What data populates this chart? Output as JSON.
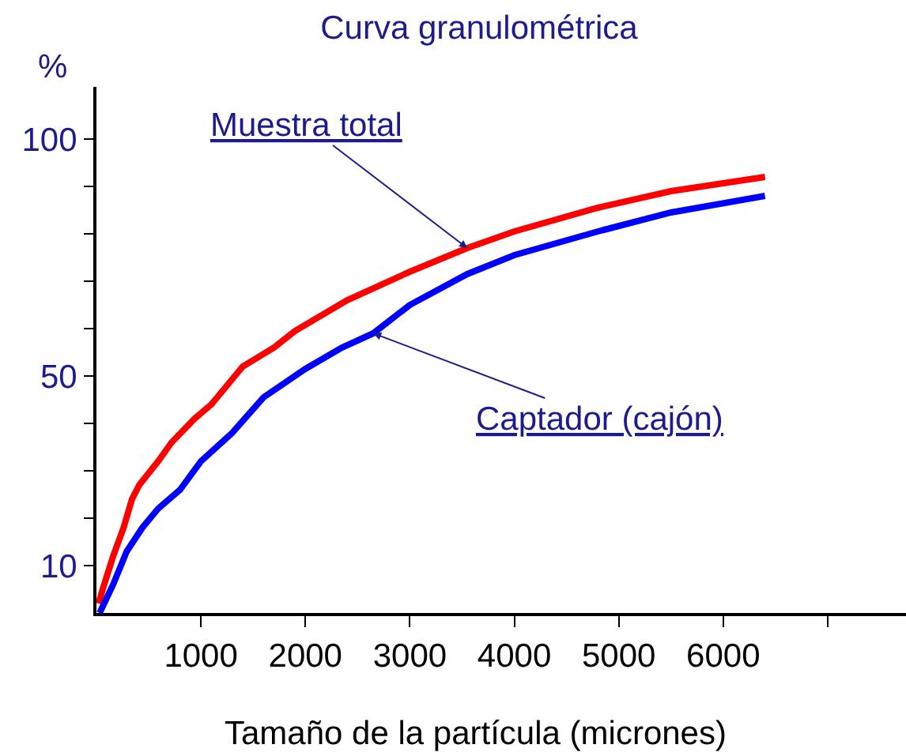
{
  "chart_data": {
    "type": "line",
    "title": "Curva granulométrica",
    "xlabel": "Tamaño de la partícula (micrones)",
    "ylabel": "%",
    "xlim": [
      0,
      7750
    ],
    "xticks": [
      1000,
      2000,
      3000,
      4000,
      5000,
      6000,
      {
        "value": 7000,
        "label": null
      }
    ],
    "ylim": [
      0,
      111
    ],
    "yticks": [
      10,
      {
        "value": 20,
        "label": null
      },
      {
        "value": 30,
        "label": null
      },
      {
        "value": 40,
        "label": null
      },
      50,
      {
        "value": 60,
        "label": null
      },
      {
        "value": 70,
        "label": null
      },
      {
        "value": 80,
        "label": null
      },
      {
        "value": 90,
        "label": null
      },
      100
    ],
    "annotations": [
      {
        "text": "Muestra total",
        "x": 3550,
        "y": 77
      },
      {
        "text": "Captador (cajón)",
        "x": 2650,
        "y": 59
      }
    ],
    "series": [
      {
        "color": "#ff0000",
        "x": [
          20,
          60,
          160,
          260,
          340,
          410,
          590,
          720,
          940,
          1100,
          1400,
          1700,
          1900,
          2400,
          3000,
          3550,
          4000,
          4800,
          5500,
          6400
        ],
        "values": [
          2,
          5,
          12,
          18,
          24,
          27,
          32,
          36,
          41,
          44,
          52,
          56,
          59.5,
          66,
          72,
          77,
          80.5,
          85.5,
          89,
          92
        ]
      },
      {
        "color": "#0000ff",
        "x": [
          30,
          160,
          290,
          440,
          590,
          800,
          1000,
          1300,
          1600,
          2000,
          2350,
          2650,
          3000,
          3550,
          4000,
          4800,
          5500,
          6400
        ],
        "values": [
          0,
          6,
          13,
          18,
          22,
          26,
          32,
          38,
          45.5,
          51.5,
          56,
          59,
          65,
          71.5,
          75.5,
          80.5,
          84.5,
          88
        ]
      }
    ]
  }
}
